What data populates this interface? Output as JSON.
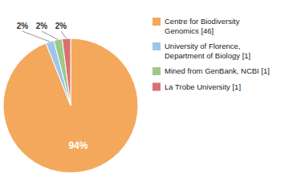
{
  "chart_data": {
    "type": "pie",
    "categories": [
      "Centre for Biodiversity\nGenomics [46]",
      "University of Florence,\nDepartment of Biology [1]",
      "Mined from GenBank, NCBI [1]",
      "La Trobe University [1]"
    ],
    "values": [
      94,
      2,
      2,
      2
    ],
    "value_labels": [
      "94%",
      "2%",
      "2%",
      "2%"
    ],
    "colors": [
      "#F4A85C",
      "#9EC6E8",
      "#9DC88A",
      "#D97070"
    ],
    "data_labels": true,
    "legend": "right"
  }
}
